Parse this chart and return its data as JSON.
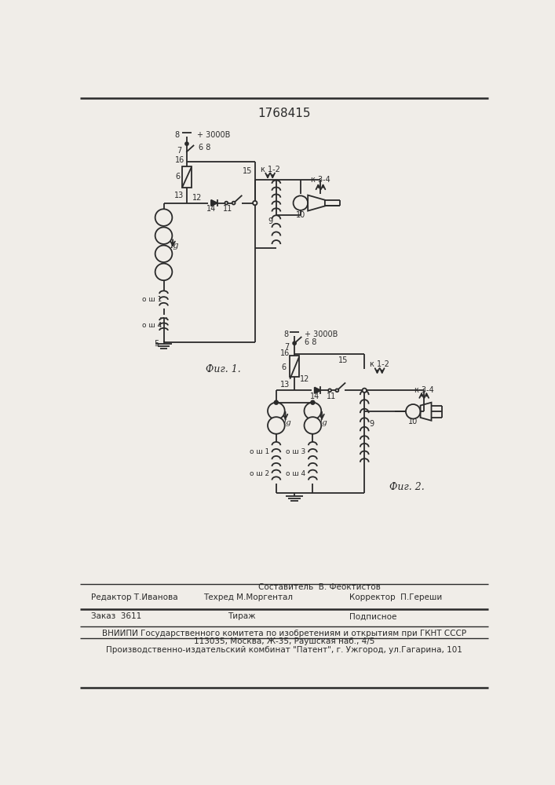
{
  "title": "1768415",
  "bg": "#f0ede8",
  "lc": "#2a2a2a",
  "fig1_label": "Фиг. 1.",
  "fig2_label": "Фиг. 2.",
  "footer_line1": "Составитель  В. Феоктистов",
  "footer_left2": "Редактор Т.Иванова",
  "footer_mid2": "Техред М.Моргентал",
  "footer_right2": "Корректор  П.Гереши",
  "footer_left3": "Заказ  3611",
  "footer_mid3": "Тираж",
  "footer_right3": "Подписное",
  "footer_line4": "ВНИИПИ Государственного комитета по изобретениям и открытиям при ГКНТ СССР",
  "footer_line5": "113035, Москва, Ж-35, Раушская наб., 4/5",
  "footer_line6": "Производственно-издательский комбинат \"Патент\", г. Ужгород, ул.Гагарина, 101"
}
